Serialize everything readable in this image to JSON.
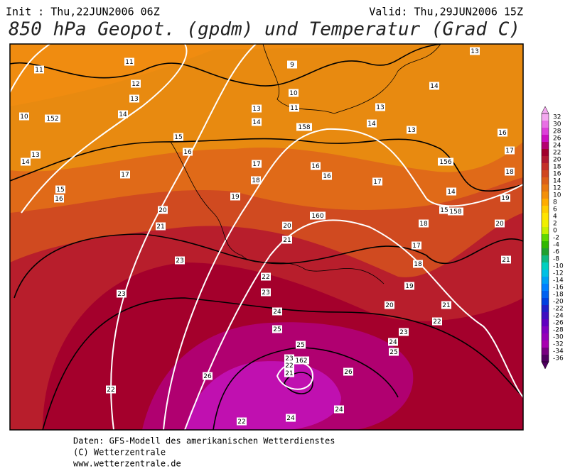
{
  "header": {
    "init": "Init : Thu,22JUN2006 06Z",
    "valid": "Valid: Thu,29JUN2006 15Z",
    "title": "850 hPa Geopot. (gpdm) und Temperatur (Grad C)"
  },
  "footer": [
    "Daten: GFS-Modell des amerikanischen Wetterdienstes",
    "(C) Wetterzentrale",
    "www.wetterzentrale.de"
  ],
  "colorbar": {
    "values": [
      32,
      30,
      28,
      26,
      24,
      22,
      20,
      18,
      16,
      14,
      12,
      10,
      8,
      6,
      4,
      2,
      0,
      -2,
      -4,
      -6,
      -8,
      -10,
      -12,
      -14,
      -16,
      -18,
      -20,
      -22,
      -24,
      -26,
      -28,
      -30,
      -32,
      -34,
      -36
    ],
    "colors": [
      "#f4a8f0",
      "#e870e4",
      "#dc40d8",
      "#cc10c0",
      "#b40070",
      "#a0002c",
      "#b01830",
      "#c43028",
      "#d04820",
      "#dc6018",
      "#e87810",
      "#f49008",
      "#ffac00",
      "#ffcc00",
      "#ffe400",
      "#f0f000",
      "#c8f000",
      "#60d800",
      "#30b800",
      "#20a030",
      "#10b880",
      "#00d0c0",
      "#00c0e4",
      "#00a0f4",
      "#0080ff",
      "#0060f0",
      "#0040e0",
      "#2020c8",
      "#4010c0",
      "#6000c0",
      "#8000c0",
      "#9400b8",
      "#a800b0",
      "#780080",
      "#500060"
    ]
  },
  "isotherm_labels": [
    11,
    11,
    12,
    13,
    14,
    9,
    10,
    11,
    13,
    14,
    13,
    14,
    13,
    14,
    13,
    10,
    13,
    14,
    15,
    16,
    17,
    16,
    16,
    17,
    17,
    18,
    15,
    16,
    19,
    20,
    21,
    20,
    21,
    17,
    18,
    18,
    19,
    20,
    21,
    22,
    16,
    17,
    18,
    14,
    19,
    20,
    21,
    23,
    23,
    22,
    23,
    24,
    25,
    25,
    23,
    24,
    25,
    23,
    22,
    21,
    26,
    26,
    22,
    24,
    24,
    22,
    15
  ],
  "geopotential_labels": [
    152,
    158,
    156,
    158,
    160,
    162
  ]
}
